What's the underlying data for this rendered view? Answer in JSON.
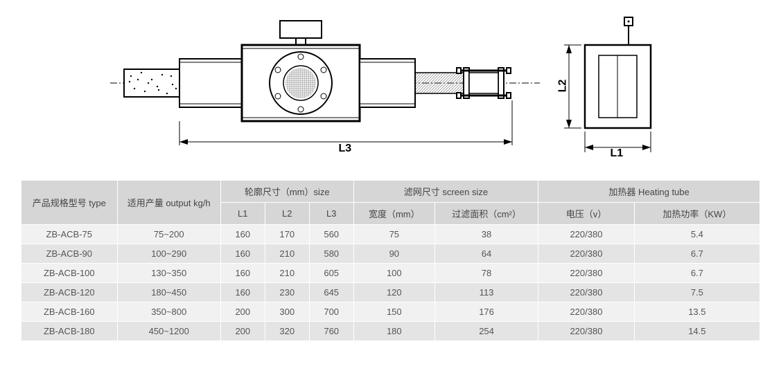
{
  "diagram": {
    "main_dim_label": "L3",
    "side_dim_v": "L2",
    "side_dim_h": "L1",
    "colors": {
      "line": "#000000",
      "hatch_fill": "#888"
    }
  },
  "table": {
    "header_bg": "#d6d6d6",
    "row_odd_bg": "#f1f1f1",
    "row_even_bg": "#e4e4e4",
    "text_color": "#555555",
    "headers": {
      "type": "产品规格型号 type",
      "output": "适用产量 output kg/h",
      "size_group": "轮廓尺寸（mm）size",
      "l1": "L1",
      "l2": "L2",
      "l3": "L3",
      "screen_group": "滤网尺寸 screen size",
      "screen_width": "宽度（mm）",
      "screen_area": "过滤面积（cm²）",
      "heater_group": "加热器 Heating tube",
      "voltage": "电压（v）",
      "power": "加热功率（KW）"
    },
    "rows": [
      {
        "type": "ZB-ACB-75",
        "output": "75~200",
        "l1": "160",
        "l2": "170",
        "l3": "560",
        "sw": "75",
        "sa": "38",
        "v": "220/380",
        "p": "5.4"
      },
      {
        "type": "ZB-ACB-90",
        "output": "100~290",
        "l1": "160",
        "l2": "210",
        "l3": "580",
        "sw": "90",
        "sa": "64",
        "v": "220/380",
        "p": "6.7"
      },
      {
        "type": "ZB-ACB-100",
        "output": "130~350",
        "l1": "160",
        "l2": "210",
        "l3": "605",
        "sw": "100",
        "sa": "78",
        "v": "220/380",
        "p": "6.7"
      },
      {
        "type": "ZB-ACB-120",
        "output": "180~450",
        "l1": "160",
        "l2": "230",
        "l3": "645",
        "sw": "120",
        "sa": "113",
        "v": "220/380",
        "p": "7.5"
      },
      {
        "type": "ZB-ACB-160",
        "output": "350~800",
        "l1": "200",
        "l2": "300",
        "l3": "700",
        "sw": "150",
        "sa": "176",
        "v": "220/380",
        "p": "13.5"
      },
      {
        "type": "ZB-ACB-180",
        "output": "450~1200",
        "l1": "200",
        "l2": "320",
        "l3": "760",
        "sw": "180",
        "sa": "254",
        "v": "220/380",
        "p": "14.5"
      }
    ]
  }
}
